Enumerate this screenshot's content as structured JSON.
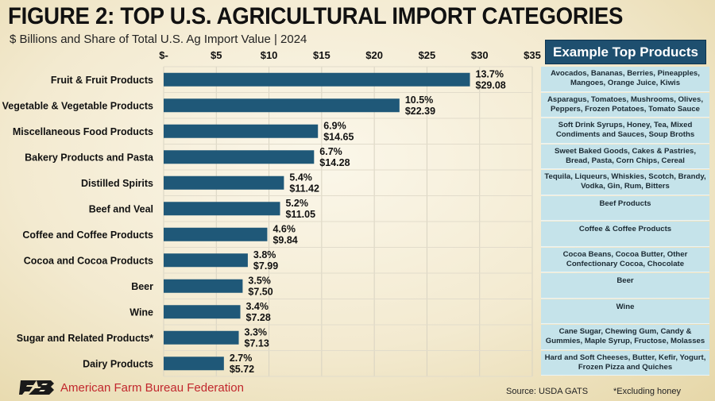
{
  "title": "FIGURE 2: TOP U.S. AGRICULTURAL IMPORT CATEGORIES",
  "subtitle": "$ Billions and Share of Total U.S. Ag Import Value | 2024",
  "products_header": "Example Top Products",
  "source": "Source: USDA GATS",
  "footnote": "*Excluding honey",
  "organization": "American Farm Bureau Federation",
  "colors": {
    "bar": "#1f5878",
    "panel": "#c5e3ea",
    "header": "#1e4f6f",
    "brand": "#c1272d"
  },
  "chart_data": {
    "type": "bar",
    "orientation": "horizontal",
    "categories": [
      "Fruit & Fruit Products",
      "Vegetable & Vegetable Products",
      "Miscellaneous Food Products",
      "Bakery Products and Pasta",
      "Distilled Spirits",
      "Beef and Veal",
      "Coffee and Coffee Products",
      "Cocoa and Cocoa Products",
      "Beer",
      "Wine",
      "Sugar and Related Products*",
      "Dairy Products"
    ],
    "values": [
      29.08,
      22.39,
      14.65,
      14.28,
      11.42,
      11.05,
      9.84,
      7.99,
      7.5,
      7.28,
      7.13,
      5.72
    ],
    "value_labels": [
      "$29.08",
      "$22.39",
      "$14.65",
      "$14.28",
      "$11.42",
      "$11.05",
      "$9.84",
      "$7.99",
      "$7.50",
      "$7.28",
      "$7.13",
      "$5.72"
    ],
    "share_labels": [
      "13.7%",
      "10.5%",
      "6.9%",
      "6.7%",
      "5.4%",
      "5.2%",
      "4.6%",
      "3.8%",
      "3.5%",
      "3.4%",
      "3.3%",
      "2.7%"
    ],
    "xlim": [
      0,
      35
    ],
    "x_ticks": [
      0,
      5,
      10,
      15,
      20,
      25,
      30,
      35
    ],
    "x_tick_labels": [
      "$-",
      "$5",
      "$10",
      "$15",
      "$20",
      "$25",
      "$30",
      "$35"
    ],
    "grid": true
  },
  "example_products": [
    "Avocados, Bananas, Berries, Pineapples, Mangoes, Orange Juice, Kiwis",
    "Asparagus, Tomatoes, Mushrooms, Olives, Peppers, Frozen Potatoes, Tomato Sauce",
    "Soft Drink Syrups, Honey, Tea, Mixed Condiments and Sauces, Soup Broths",
    "Sweet Baked Goods, Cakes & Pastries, Bread, Pasta, Corn Chips, Cereal",
    "Tequila, Liqueurs, Whiskies, Scotch, Brandy, Vodka, Gin, Rum, Bitters",
    "Beef Products",
    "Coffee & Coffee Products",
    "Cocoa Beans, Cocoa Butter, Other Confectionary Cocoa, Chocolate",
    "Beer",
    "Wine",
    "Cane Sugar, Chewing Gum, Candy & Gummies, Maple Syrup, Fructose, Molasses",
    "Hard and Soft Cheeses, Butter, Kefir, Yogurt, Frozen Pizza and Quiches"
  ]
}
